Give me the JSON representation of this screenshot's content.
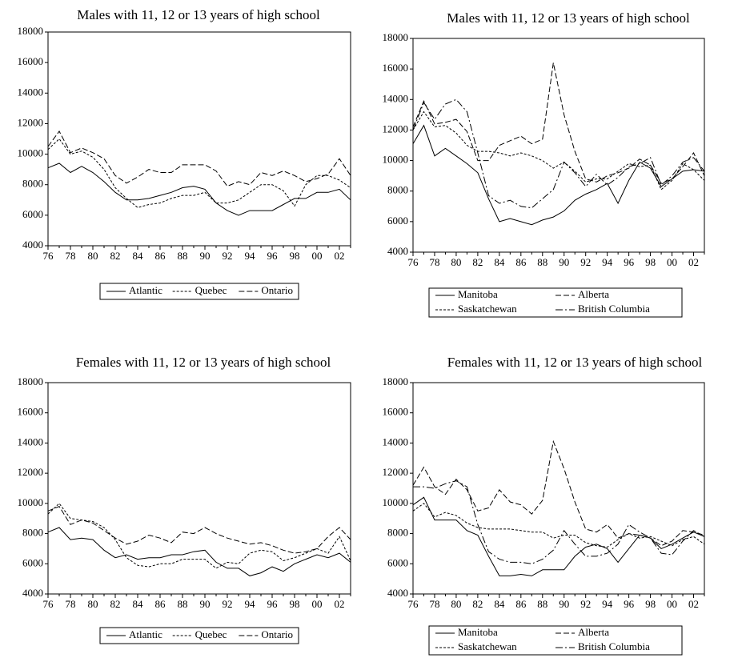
{
  "chart_data": [
    {
      "type": "line",
      "title": "Males with 11, 12 or 13 years of high school",
      "categories": [
        "76",
        null,
        "78",
        null,
        "80",
        null,
        "82",
        null,
        "84",
        null,
        "86",
        null,
        "88",
        null,
        "90",
        null,
        "92",
        null,
        "94",
        null,
        "96",
        null,
        "98",
        null,
        "00",
        null,
        "02",
        null
      ],
      "ylim": [
        4000,
        18000
      ],
      "yticks": [
        4000,
        6000,
        8000,
        10000,
        12000,
        14000,
        16000,
        18000
      ],
      "series": [
        {
          "name": "Atlantic",
          "color": "#000000",
          "style": "solid",
          "values": [
            9100,
            9400,
            8800,
            9200,
            8800,
            8200,
            7500,
            7000,
            7000,
            7100,
            7300,
            7500,
            7800,
            7900,
            7700,
            6800,
            6300,
            6000,
            6300,
            6300,
            6300,
            6700,
            7100,
            7100,
            7500,
            7500,
            7700,
            7000
          ]
        },
        {
          "name": "Quebec",
          "color": "#000000",
          "style": "dotted",
          "values": [
            10300,
            11000,
            10000,
            10200,
            9800,
            9000,
            7800,
            7100,
            6500,
            6700,
            6800,
            7100,
            7300,
            7300,
            7500,
            6800,
            6800,
            7000,
            7500,
            8000,
            8000,
            7600,
            6600,
            8000,
            8600,
            8600,
            8300,
            7800
          ]
        },
        {
          "name": "Ontario",
          "color": "#000000",
          "style": "dashed",
          "values": [
            10500,
            11500,
            10100,
            10400,
            10100,
            9700,
            8600,
            8100,
            8500,
            9000,
            8800,
            8800,
            9300,
            9300,
            9300,
            8900,
            7900,
            8200,
            8000,
            8800,
            8600,
            8900,
            8600,
            8200,
            8400,
            8700,
            9700,
            8600
          ]
        }
      ]
    },
    {
      "type": "line",
      "title": "Males with 11, 12 or 13 years of high school",
      "categories": [
        "76",
        null,
        "78",
        null,
        "80",
        null,
        "82",
        null,
        "84",
        null,
        "86",
        null,
        "88",
        null,
        "90",
        null,
        "92",
        null,
        "94",
        null,
        "96",
        null,
        "98",
        null,
        "00",
        null,
        "02",
        null
      ],
      "ylim": [
        4000,
        18000
      ],
      "yticks": [
        4000,
        6000,
        8000,
        10000,
        12000,
        14000,
        16000,
        18000
      ],
      "series": [
        {
          "name": "Manitoba",
          "color": "#000000",
          "style": "solid",
          "values": [
            11100,
            12300,
            10300,
            10800,
            10300,
            9800,
            9200,
            7500,
            6000,
            6200,
            6000,
            5800,
            6100,
            6300,
            6700,
            7400,
            7800,
            8100,
            8500,
            7200,
            8700,
            9900,
            9500,
            8300,
            8800,
            9300,
            9400,
            9300
          ]
        },
        {
          "name": "Alberta",
          "color": "#000000",
          "style": "dashed",
          "values": [
            12200,
            13900,
            12400,
            12500,
            12700,
            11900,
            10000,
            10000,
            11000,
            11300,
            11600,
            11100,
            11400,
            16400,
            13000,
            10600,
            8800,
            8600,
            9000,
            9200,
            9500,
            10100,
            9700,
            8500,
            8800,
            9600,
            10500,
            9000
          ]
        },
        {
          "name": "Saskatchewan",
          "color": "#000000",
          "style": "dotted",
          "values": [
            12000,
            13200,
            12200,
            12300,
            11800,
            11000,
            10600,
            10600,
            10500,
            10300,
            10500,
            10300,
            10000,
            9500,
            9900,
            9300,
            8600,
            8800,
            8800,
            9300,
            9800,
            9600,
            9700,
            8100,
            8700,
            9800,
            9400,
            8700
          ]
        },
        {
          "name": "British Columbia",
          "color": "#000000",
          "style": "dashdot",
          "values": [
            12000,
            13800,
            12700,
            13700,
            14000,
            13200,
            10500,
            7700,
            7200,
            7400,
            7000,
            6900,
            7500,
            8100,
            9900,
            9200,
            8300,
            9100,
            8400,
            8900,
            9600,
            9800,
            10200,
            8400,
            9000,
            9900,
            10200,
            9300
          ]
        }
      ]
    },
    {
      "type": "line",
      "title": "Females with 11, 12 or 13 years of high school",
      "categories": [
        "76",
        null,
        "78",
        null,
        "80",
        null,
        "82",
        null,
        "84",
        null,
        "86",
        null,
        "88",
        null,
        "90",
        null,
        "92",
        null,
        "94",
        null,
        "96",
        null,
        "98",
        null,
        "00",
        null,
        "02",
        null
      ],
      "ylim": [
        4000,
        18000
      ],
      "yticks": [
        4000,
        6000,
        8000,
        10000,
        12000,
        14000,
        16000,
        18000
      ],
      "series": [
        {
          "name": "Atlantic",
          "color": "#000000",
          "style": "solid",
          "values": [
            8100,
            8400,
            7600,
            7700,
            7600,
            6900,
            6400,
            6600,
            6300,
            6400,
            6400,
            6600,
            6600,
            6800,
            6900,
            6100,
            5700,
            5700,
            5200,
            5400,
            5800,
            5500,
            6000,
            6300,
            6600,
            6400,
            6700,
            6100
          ]
        },
        {
          "name": "Quebec",
          "color": "#000000",
          "style": "dotted",
          "values": [
            9300,
            10000,
            9000,
            8900,
            8800,
            8400,
            7600,
            6400,
            5900,
            5800,
            6000,
            6000,
            6300,
            6300,
            6300,
            5700,
            6100,
            6000,
            6700,
            6900,
            6800,
            6200,
            6400,
            6700,
            7000,
            6700,
            7800,
            6200
          ]
        },
        {
          "name": "Ontario",
          "color": "#000000",
          "style": "dashed",
          "values": [
            9500,
            9800,
            8600,
            8900,
            8700,
            8200,
            7700,
            7300,
            7500,
            7900,
            7700,
            7400,
            8100,
            8000,
            8400,
            8000,
            7700,
            7500,
            7300,
            7400,
            7200,
            6900,
            6700,
            6800,
            7000,
            7800,
            8400,
            7600
          ]
        }
      ]
    },
    {
      "type": "line",
      "title": "Females with 11, 12 or 13 years of high school",
      "categories": [
        "76",
        null,
        "78",
        null,
        "80",
        null,
        "82",
        null,
        "84",
        null,
        "86",
        null,
        "88",
        null,
        "90",
        null,
        "92",
        null,
        "94",
        null,
        "96",
        null,
        "98",
        null,
        "00",
        null,
        "02",
        null
      ],
      "ylim": [
        4000,
        18000
      ],
      "yticks": [
        4000,
        6000,
        8000,
        10000,
        12000,
        14000,
        16000,
        18000
      ],
      "series": [
        {
          "name": "Manitoba",
          "color": "#000000",
          "style": "solid",
          "values": [
            9900,
            10400,
            8900,
            8900,
            8900,
            8200,
            7900,
            6500,
            5200,
            5200,
            5300,
            5200,
            5600,
            5600,
            5600,
            6500,
            7100,
            7300,
            7000,
            6100,
            7000,
            7900,
            7700,
            7000,
            7300,
            7700,
            8100,
            7800
          ]
        },
        {
          "name": "Alberta",
          "color": "#000000",
          "style": "dashed",
          "values": [
            11200,
            12400,
            11100,
            10600,
            11600,
            10900,
            9500,
            9700,
            10900,
            10100,
            9900,
            9300,
            10200,
            14100,
            12300,
            10100,
            8300,
            8100,
            8600,
            7700,
            8000,
            7900,
            7700,
            7200,
            7500,
            8200,
            8100,
            7900
          ]
        },
        {
          "name": "Saskatchewan",
          "color": "#000000",
          "style": "dotted",
          "values": [
            9500,
            10000,
            9100,
            9400,
            9200,
            8700,
            8400,
            8300,
            8300,
            8300,
            8200,
            8100,
            8100,
            7700,
            7900,
            7900,
            7400,
            7200,
            7100,
            7600,
            8000,
            7700,
            7800,
            7500,
            7200,
            7600,
            7800,
            7300
          ]
        },
        {
          "name": "British Columbia",
          "color": "#000000",
          "style": "dashdot",
          "values": [
            11100,
            11100,
            11000,
            11300,
            11500,
            11100,
            8600,
            6800,
            6300,
            6100,
            6100,
            6000,
            6300,
            6900,
            8200,
            7300,
            6500,
            6500,
            6700,
            7300,
            8600,
            8100,
            7700,
            6700,
            6600,
            7500,
            8200,
            7800
          ]
        }
      ]
    }
  ]
}
